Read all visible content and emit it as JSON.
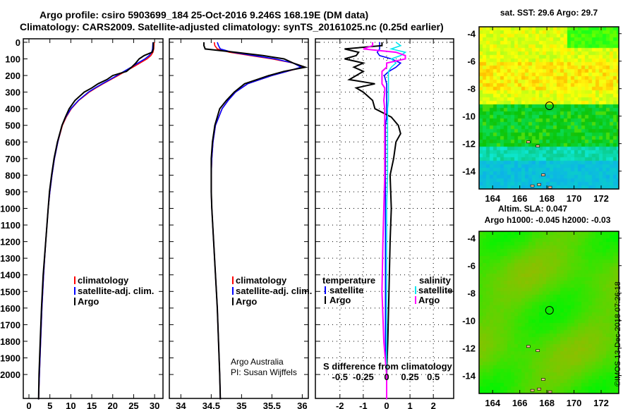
{
  "title_line1": "Argo profile: csiro 5903699_184 25-Oct-2016 9.246S 168.19E (DM data)",
  "title_line2": "Climatology: CARS2009. Satellite-adjusted climatology: synTS_20161025.nc (0.25d earlier)",
  "colors": {
    "climatology": "#ff0000",
    "satellite": "#0000ff",
    "argo": "#000000",
    "sal_sat": "#00e5ee",
    "sal_argo": "#ff00ff"
  },
  "depth_ticks": [
    0,
    100,
    200,
    300,
    400,
    500,
    600,
    700,
    800,
    900,
    1000,
    1100,
    1200,
    1300,
    1400,
    1500,
    1600,
    1700,
    1800,
    1900,
    2000
  ],
  "chart_data": [
    {
      "type": "line",
      "title": "",
      "xlabel": "temperature (deg C)",
      "ylabel": "depth",
      "xlim": [
        -1.35,
        32
      ],
      "ylim": [
        2144,
        -21
      ],
      "xticks": [
        0,
        5,
        10,
        15,
        20,
        25,
        30
      ],
      "legend": [
        "climatology",
        "satellite-adj. clim.",
        "Argo"
      ],
      "depth": [
        0,
        40,
        60,
        80,
        100,
        125,
        150,
        175,
        200,
        225,
        250,
        275,
        300,
        350,
        400,
        450,
        500,
        600,
        700,
        800,
        900,
        1000,
        1200,
        1400,
        1600,
        1800,
        2000,
        2150
      ],
      "series": [
        {
          "name": "climatology",
          "values": [
            29.9,
            29.8,
            29.6,
            29.1,
            28.2,
            26.5,
            24.8,
            23.0,
            21.3,
            19.5,
            17.7,
            16.0,
            14.4,
            11.9,
            10.1,
            8.9,
            8.0,
            6.9,
            6.1,
            5.5,
            5.0,
            4.6,
            4.0,
            3.5,
            3.1,
            2.8,
            2.5,
            2.3
          ]
        },
        {
          "name": "satellite-adj. clim.",
          "values": [
            29.6,
            29.5,
            29.3,
            28.7,
            27.7,
            26.0,
            24.4,
            22.7,
            21.0,
            19.3,
            17.5,
            15.8,
            14.2,
            11.8,
            10.0,
            8.8,
            7.9,
            6.9,
            6.1,
            5.5,
            5.0,
            4.6,
            4.0,
            3.5,
            3.1,
            2.8,
            2.5,
            2.3
          ]
        },
        {
          "name": "Argo",
          "values": [
            29.7,
            29.7,
            29.4,
            27.5,
            26.3,
            25.5,
            24.5,
            23.3,
            20.0,
            18.6,
            16.5,
            15.0,
            13.2,
            11.0,
            9.6,
            8.7,
            7.9,
            6.8,
            6.0,
            5.4,
            4.9,
            4.6,
            4.0,
            3.4,
            3.0,
            2.7,
            2.4,
            2.3
          ]
        }
      ]
    },
    {
      "type": "line",
      "title": "",
      "xlabel": "salinity",
      "ylabel": "depth",
      "xlim": [
        33.81,
        36.1
      ],
      "ylim": [
        2144,
        -21
      ],
      "xticks": [
        34,
        34.5,
        35,
        35.5,
        36
      ],
      "legend": [
        "climatology",
        "satellite-adj. clim.",
        "Argo"
      ],
      "annotation": [
        "Argo Australia",
        "PI: Susan Wijffels"
      ],
      "depth": [
        0,
        20,
        40,
        60,
        80,
        100,
        125,
        150,
        175,
        200,
        225,
        250,
        300,
        350,
        400,
        500,
        600,
        700,
        800,
        900,
        1000,
        1200,
        1400,
        1600,
        1800,
        2000,
        2150
      ],
      "series": [
        {
          "name": "climatology",
          "values": [
            34.55,
            34.56,
            34.6,
            34.8,
            35.15,
            35.5,
            35.85,
            36.0,
            35.75,
            35.5,
            35.3,
            35.1,
            34.9,
            34.78,
            34.68,
            34.57,
            34.53,
            34.51,
            34.5,
            34.5,
            34.51,
            34.54,
            34.57,
            34.6,
            34.62,
            34.64,
            34.65
          ]
        },
        {
          "name": "satellite-adj. clim.",
          "values": [
            34.6,
            34.62,
            34.65,
            34.85,
            35.2,
            35.55,
            35.85,
            35.98,
            35.75,
            35.5,
            35.3,
            35.1,
            34.9,
            34.78,
            34.68,
            34.57,
            34.53,
            34.51,
            34.5,
            34.5,
            34.51,
            34.54,
            34.57,
            34.6,
            34.62,
            34.64,
            34.65
          ]
        },
        {
          "name": "Argo",
          "values": [
            34.38,
            34.38,
            34.4,
            34.9,
            35.35,
            35.7,
            35.85,
            36.05,
            35.7,
            35.45,
            35.25,
            35.05,
            34.88,
            34.75,
            34.64,
            34.56,
            34.52,
            34.5,
            34.5,
            34.5,
            34.51,
            34.54,
            34.57,
            34.6,
            34.62,
            34.64,
            34.65
          ]
        }
      ]
    },
    {
      "type": "line",
      "title": "",
      "xlabel": "T difference from climatology",
      "x2label": "S difference from climatology",
      "ylabel": "depth",
      "xlim": [
        -3.05,
        2.87
      ],
      "x2lim": [
        -0.7625,
        0.7175
      ],
      "ylim": [
        2144,
        -21
      ],
      "xticks": [
        -2,
        -1,
        0,
        1,
        2
      ],
      "x2ticks": [
        "-0.5",
        "-0.25",
        "0",
        "0.25",
        "0.5"
      ],
      "x2tickvals": [
        -0.5,
        -0.25,
        0,
        0.25,
        0.5
      ],
      "legend_left_title": "temperature",
      "legend_right_title": "salinity",
      "legend_left": [
        "satellite",
        "Argo"
      ],
      "legend_right": [
        "satellite",
        "Argo"
      ],
      "depth": [
        0,
        20,
        40,
        60,
        80,
        100,
        125,
        150,
        175,
        200,
        225,
        250,
        275,
        300,
        350,
        400,
        450,
        500,
        550,
        600,
        700,
        800,
        1000,
        1200,
        1500,
        1800,
        2000,
        2150
      ],
      "series": [
        {
          "name": "T satellite",
          "values": [
            -0.3,
            -0.3,
            -0.3,
            -0.4,
            -0.3,
            0.2,
            0.6,
            0.4,
            0.1,
            -0.1,
            -0.05,
            0,
            0,
            0,
            0,
            0,
            0,
            -0.05,
            -0.05,
            -0.05,
            -0.05,
            -0.05,
            -0.05,
            -0.05,
            -0.05,
            -0.05,
            0,
            0
          ]
        },
        {
          "name": "T Argo",
          "values": [
            -0.2,
            -0.2,
            -1.8,
            -1.2,
            -1.3,
            -1.8,
            -1.0,
            -1.4,
            -1.0,
            -1.3,
            -1.6,
            -0.5,
            -1.3,
            -1.0,
            -0.6,
            -0.5,
            0.2,
            0.5,
            0.6,
            0.4,
            0.3,
            0.15,
            0.2,
            0.15,
            0.1,
            0.05,
            0,
            0
          ]
        },
        {
          "name": "S satellite",
          "values": [
            0.1,
            0.15,
            0.05,
            0.2,
            0.15,
            0.05,
            0.1,
            0.05,
            0.02,
            0.02,
            0.02,
            0.02,
            0.02,
            0.02,
            0.02,
            0.01,
            0.01,
            0.01,
            0.01,
            0.01,
            0.01,
            0.01,
            0,
            0,
            0,
            0,
            0,
            0
          ]
        },
        {
          "name": "S Argo",
          "values": [
            -0.15,
            -0.15,
            -0.25,
            0.1,
            0.2,
            0.2,
            0,
            0,
            -0.05,
            -0.05,
            -0.05,
            -0.05,
            -0.02,
            -0.02,
            -0.03,
            -0.02,
            -0.02,
            -0.02,
            -0.02,
            -0.02,
            -0.02,
            -0.02,
            -0.03,
            -0.04,
            -0.05,
            -0.03,
            0,
            0
          ]
        }
      ]
    },
    {
      "type": "heatmap",
      "title": "sat. SST: 29.6 Argo: 29.7",
      "xticks": [
        164,
        166,
        168,
        170,
        172
      ],
      "yticks": [
        -4,
        -6,
        -8,
        -10,
        -12,
        -14
      ],
      "xlim": [
        163,
        173.3
      ],
      "ylim": [
        -15.3,
        -3.5
      ],
      "marker": [
        168.19,
        -9.246
      ]
    },
    {
      "type": "heatmap",
      "title": "Altim. SLA: 0.047",
      "subtitle": "Argo h1000: -0.045 h2000: -0.03",
      "xticks": [
        164,
        166,
        168,
        170,
        172
      ],
      "yticks": [
        -4,
        -6,
        -8,
        -10,
        -12,
        -14
      ],
      "xlim": [
        163,
        173.3
      ],
      "ylim": [
        -15.3,
        -3.5
      ],
      "marker": [
        168.19,
        -9.246
      ]
    }
  ],
  "copyright": "©IMOS 13-Dec-2018 07:26:18"
}
